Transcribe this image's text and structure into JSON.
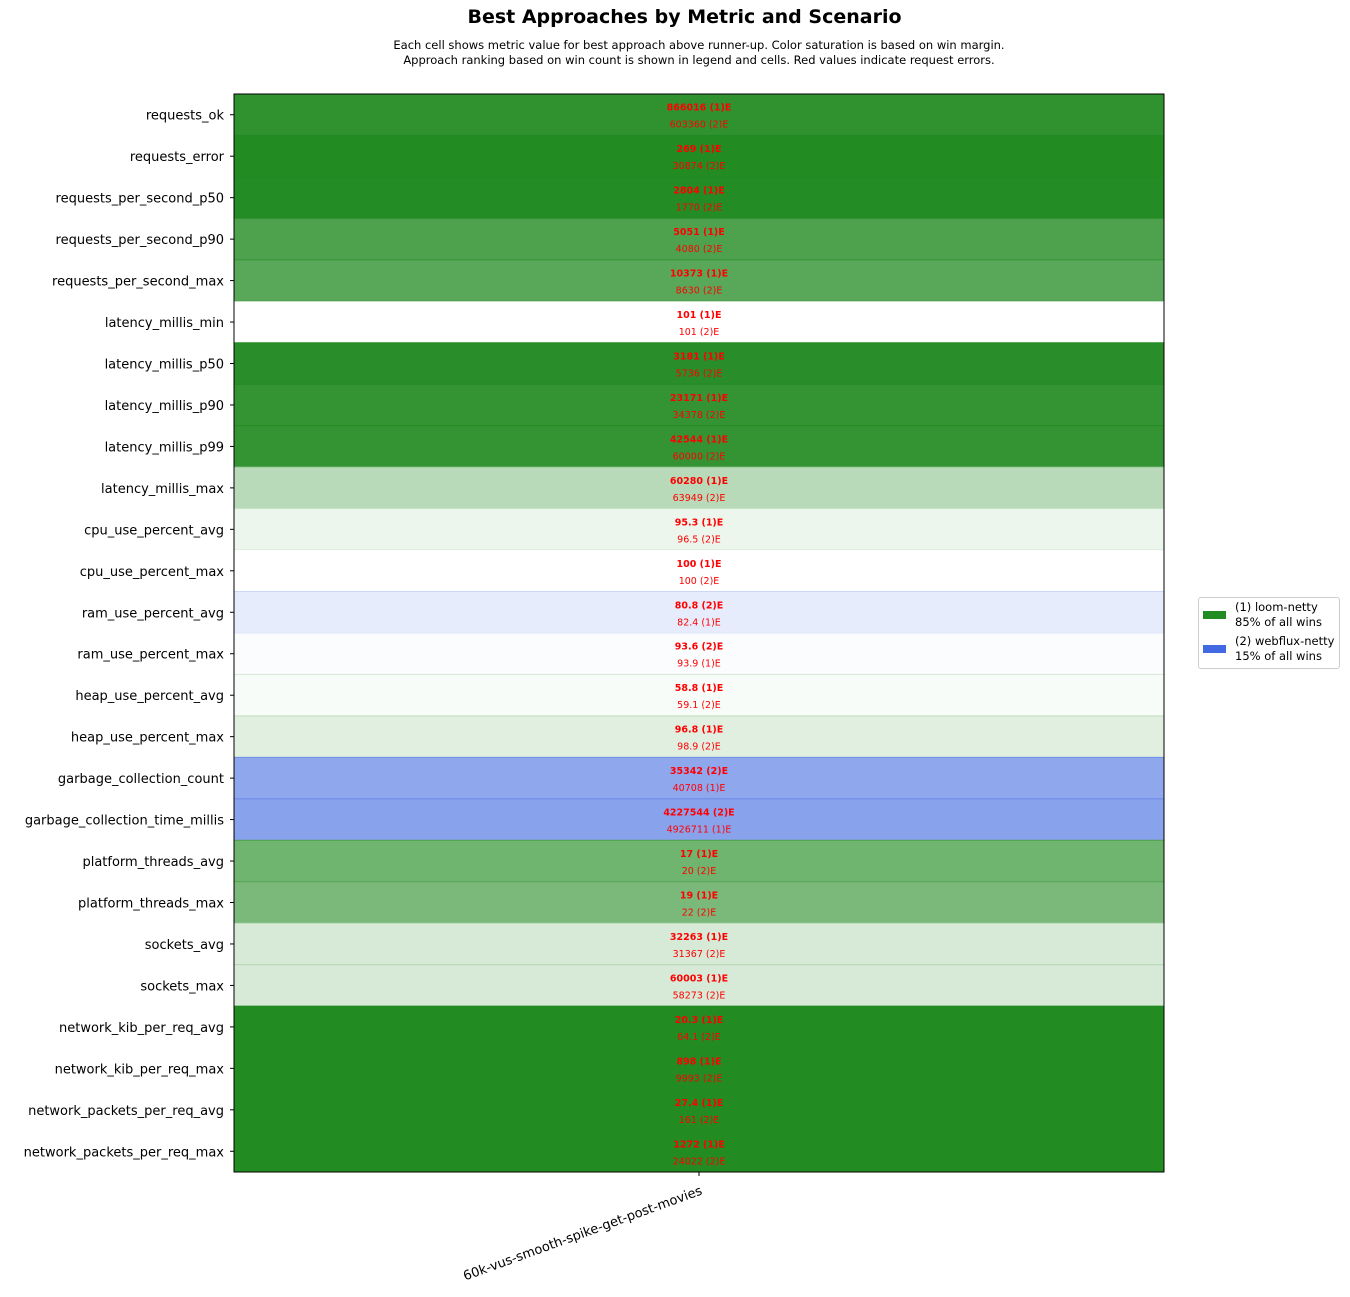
{
  "chart_data": {
    "type": "heatmap",
    "title": "Best Approaches by Metric and Scenario",
    "subtitle_lines": [
      "Each cell shows metric value for best approach above runner-up. Color saturation is based on win margin.",
      "Approach ranking based on win count is shown in legend and cells. Red values indicate request errors."
    ],
    "columns": [
      "60k-vus-smooth-spike-get-post-movies"
    ],
    "approaches": [
      {
        "rank": 1,
        "name": "loom-netty",
        "color": "#228b22",
        "label_line1": "(1) loom-netty",
        "label_line2": "85% of all wins"
      },
      {
        "rank": 2,
        "name": "webflux-netty",
        "color": "#4169e1",
        "label_line1": "(2) webflux-netty",
        "label_line2": "15% of all wins"
      }
    ],
    "value_color": "#ff0000",
    "rows": [
      {
        "metric": "requests_ok",
        "best": "866016 (1)E",
        "runner_up": "603360 (2)E",
        "winner": 1,
        "saturation": 0.94
      },
      {
        "metric": "requests_error",
        "best": "269 (1)E",
        "runner_up": "30874 (2)E",
        "winner": 1,
        "saturation": 1.0
      },
      {
        "metric": "requests_per_second_p50",
        "best": "2804 (1)E",
        "runner_up": "1770 (2)E",
        "winner": 1,
        "saturation": 0.99
      },
      {
        "metric": "requests_per_second_p90",
        "best": "5051 (1)E",
        "runner_up": "4080 (2)E",
        "winner": 1,
        "saturation": 0.8
      },
      {
        "metric": "requests_per_second_max",
        "best": "10373 (1)E",
        "runner_up": "8630 (2)E",
        "winner": 1,
        "saturation": 0.75
      },
      {
        "metric": "latency_millis_min",
        "best": "101 (1)E",
        "runner_up": "101 (2)E",
        "winner": 1,
        "saturation": 0.0
      },
      {
        "metric": "latency_millis_p50",
        "best": "3181 (1)E",
        "runner_up": "5736 (2)E",
        "winner": 1,
        "saturation": 0.97
      },
      {
        "metric": "latency_millis_p90",
        "best": "23171 (1)E",
        "runner_up": "34378 (2)E",
        "winner": 1,
        "saturation": 0.92
      },
      {
        "metric": "latency_millis_p99",
        "best": "42544 (1)E",
        "runner_up": "60000 (2)E",
        "winner": 1,
        "saturation": 0.92
      },
      {
        "metric": "latency_millis_max",
        "best": "60280 (1)E",
        "runner_up": "63949 (2)E",
        "winner": 1,
        "saturation": 0.32
      },
      {
        "metric": "cpu_use_percent_avg",
        "best": "95.3 (1)E",
        "runner_up": "96.5 (2)E",
        "winner": 1,
        "saturation": 0.08
      },
      {
        "metric": "cpu_use_percent_max",
        "best": "100 (1)E",
        "runner_up": "100 (2)E",
        "winner": 1,
        "saturation": 0.0
      },
      {
        "metric": "ram_use_percent_avg",
        "best": "80.8 (2)E",
        "runner_up": "82.4 (1)E",
        "winner": 2,
        "saturation": 0.13
      },
      {
        "metric": "ram_use_percent_max",
        "best": "93.6 (2)E",
        "runner_up": "93.9 (1)E",
        "winner": 2,
        "saturation": 0.02
      },
      {
        "metric": "heap_use_percent_avg",
        "best": "58.8 (1)E",
        "runner_up": "59.1 (2)E",
        "winner": 1,
        "saturation": 0.03
      },
      {
        "metric": "heap_use_percent_max",
        "best": "96.8 (1)E",
        "runner_up": "98.9 (2)E",
        "winner": 1,
        "saturation": 0.14
      },
      {
        "metric": "garbage_collection_count",
        "best": "35342 (2)E",
        "runner_up": "40708 (1)E",
        "winner": 2,
        "saturation": 0.59
      },
      {
        "metric": "garbage_collection_time_millis",
        "best": "4227544 (2)E",
        "runner_up": "4926711 (1)E",
        "winner": 2,
        "saturation": 0.62
      },
      {
        "metric": "platform_threads_avg",
        "best": "17 (1)E",
        "runner_up": "20 (2)E",
        "winner": 1,
        "saturation": 0.65
      },
      {
        "metric": "platform_threads_max",
        "best": "19 (1)E",
        "runner_up": "22 (2)E",
        "winner": 1,
        "saturation": 0.6
      },
      {
        "metric": "sockets_avg",
        "best": "32263 (1)E",
        "runner_up": "31367 (2)E",
        "winner": 1,
        "saturation": 0.18
      },
      {
        "metric": "sockets_max",
        "best": "60003 (1)E",
        "runner_up": "58273 (2)E",
        "winner": 1,
        "saturation": 0.18
      },
      {
        "metric": "network_kib_per_req_avg",
        "best": "20.3 (1)E",
        "runner_up": "64.1 (2)E",
        "winner": 1,
        "saturation": 1.0
      },
      {
        "metric": "network_kib_per_req_max",
        "best": "898 (1)E",
        "runner_up": "9993 (2)E",
        "winner": 1,
        "saturation": 1.0
      },
      {
        "metric": "network_packets_per_req_avg",
        "best": "27.4 (1)E",
        "runner_up": "161 (2)E",
        "winner": 1,
        "saturation": 1.0
      },
      {
        "metric": "network_packets_per_req_max",
        "best": "1272 (1)E",
        "runner_up": "24022 (2)E",
        "winner": 1,
        "saturation": 1.0
      }
    ]
  }
}
